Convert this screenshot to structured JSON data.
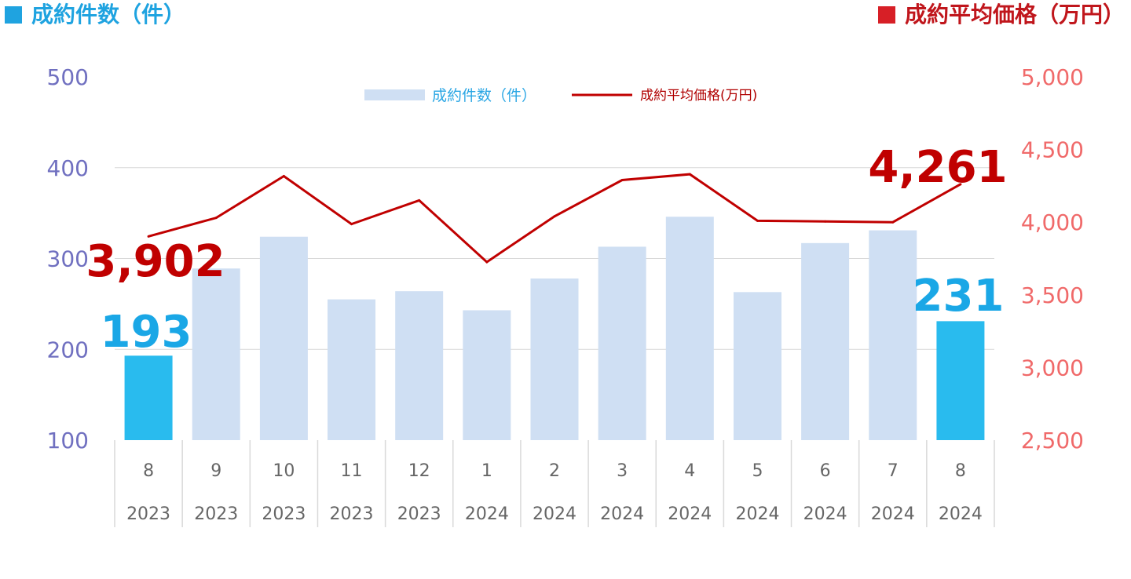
{
  "header": {
    "left_title": "成約件数（件）",
    "right_title": "成約平均価格（万円）"
  },
  "colors": {
    "bar_normal": "#cfdff3",
    "bar_highlight": "#29bbee",
    "line": "#c00000",
    "left_axis": "#7070c0",
    "right_axis": "#f06a6a"
  },
  "chart_data": {
    "type": "bar",
    "categories": [
      {
        "month": "8",
        "year": "2023"
      },
      {
        "month": "9",
        "year": "2023"
      },
      {
        "month": "10",
        "year": "2023"
      },
      {
        "month": "11",
        "year": "2023"
      },
      {
        "month": "12",
        "year": "2023"
      },
      {
        "month": "1",
        "year": "2024"
      },
      {
        "month": "2",
        "year": "2024"
      },
      {
        "month": "3",
        "year": "2024"
      },
      {
        "month": "4",
        "year": "2024"
      },
      {
        "month": "5",
        "year": "2024"
      },
      {
        "month": "6",
        "year": "2024"
      },
      {
        "month": "7",
        "year": "2024"
      },
      {
        "month": "8",
        "year": "2024"
      }
    ],
    "series": [
      {
        "name": "成約件数（件）",
        "type": "bar",
        "axis": "left",
        "values": [
          193,
          289,
          324,
          255,
          264,
          243,
          278,
          313,
          346,
          263,
          317,
          331,
          231
        ],
        "highlight": [
          0,
          12
        ]
      },
      {
        "name": "成約平均価格(万円)",
        "type": "line",
        "axis": "right",
        "values": [
          3902,
          4030,
          4317,
          3987,
          4150,
          3726,
          4040,
          4290,
          4330,
          4010,
          4005,
          4000,
          4261
        ]
      }
    ],
    "left_axis": {
      "min": 100,
      "max": 500,
      "ticks": [
        "100",
        "200",
        "300",
        "400",
        "500"
      ]
    },
    "right_axis": {
      "min": 2500,
      "max": 5000,
      "ticks": [
        "2,500",
        "3,000",
        "3,500",
        "4,000",
        "4,500",
        "5,000"
      ]
    },
    "annotations": {
      "first_price": "3,902",
      "last_price": "4,261",
      "first_count": "193",
      "last_count": "231"
    },
    "grid": true,
    "legend_position": "top-center"
  }
}
